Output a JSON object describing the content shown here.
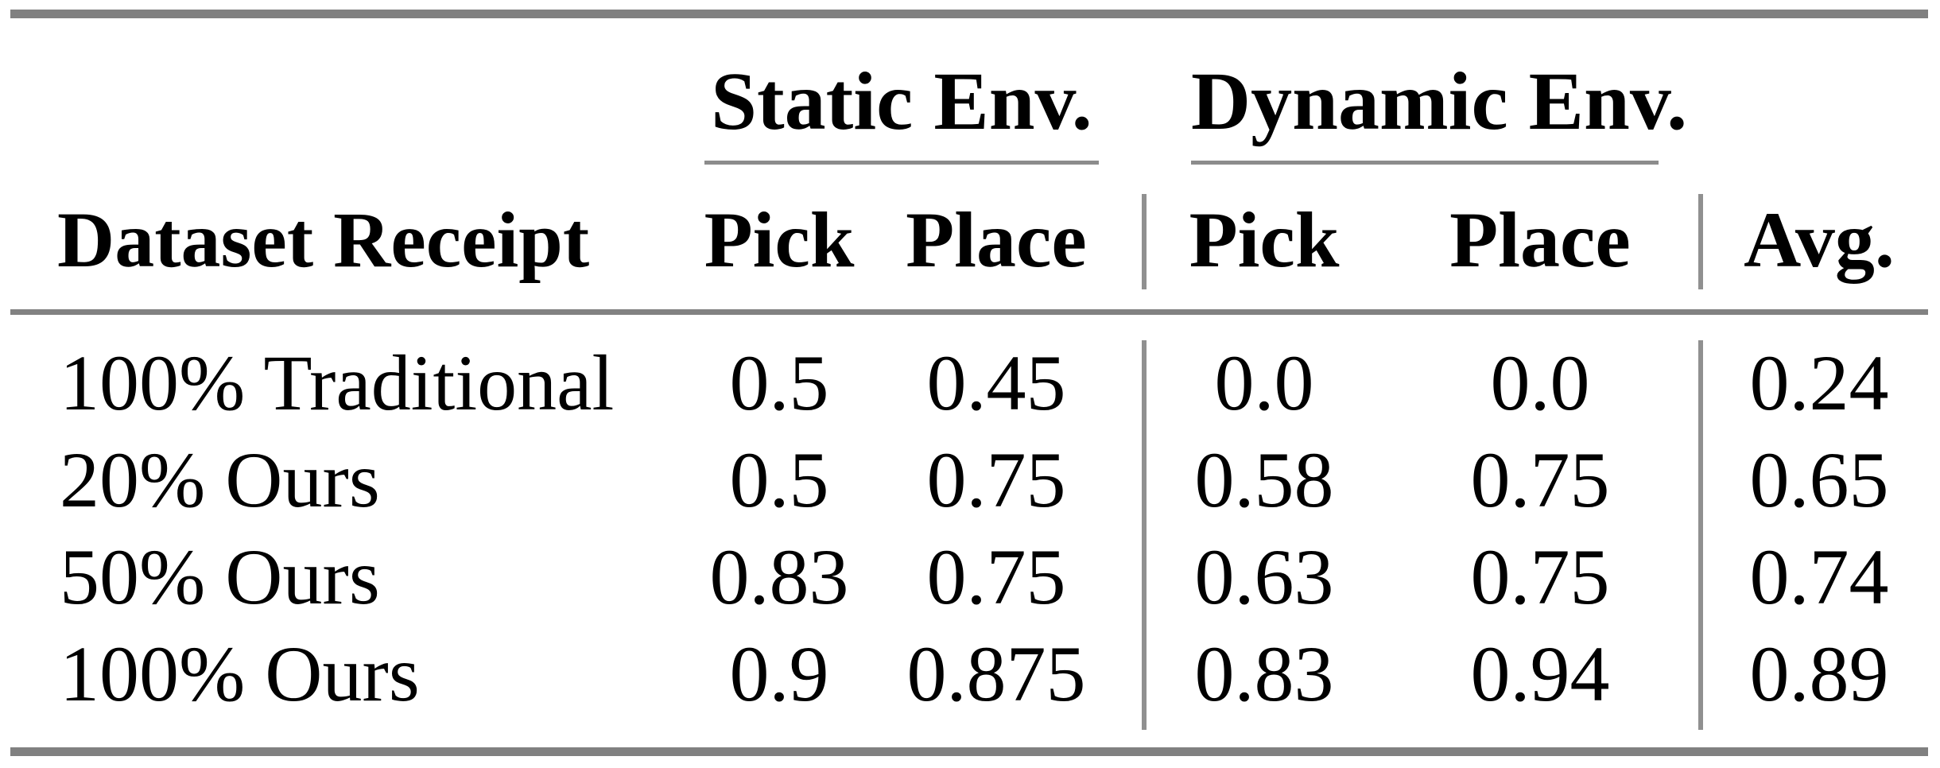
{
  "table": {
    "group_headers": [
      {
        "label": "Static Env."
      },
      {
        "label": "Dynamic Env."
      }
    ],
    "columns": [
      "Dataset Receipt",
      "Pick",
      "Place",
      "Pick",
      "Place",
      "Avg."
    ],
    "rows": [
      {
        "cells": [
          "100% Traditional",
          "0.5",
          "0.45",
          "0.0",
          "0.0",
          "0.24"
        ]
      },
      {
        "cells": [
          "20% Ours",
          "0.5",
          "0.75",
          "0.58",
          "0.75",
          "0.65"
        ]
      },
      {
        "cells": [
          "50% Ours",
          "0.83",
          "0.75",
          "0.63",
          "0.75",
          "0.74"
        ]
      },
      {
        "cells": [
          "100% Ours",
          "0.9",
          "0.875",
          "0.83",
          "0.94",
          "0.89"
        ]
      }
    ],
    "colors": {
      "rule_gray": "#808080",
      "text": "#000000",
      "background": "#ffffff"
    }
  }
}
